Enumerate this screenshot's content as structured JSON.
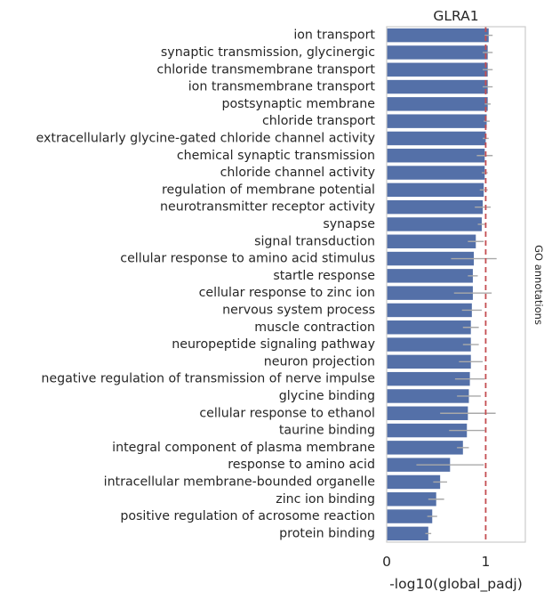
{
  "chart_data": {
    "type": "bar",
    "orientation": "horizontal",
    "title": "GLRA1",
    "xlabel": "-log10(global_padj)",
    "ylabel": "",
    "side_label": "GO annotations",
    "xlim": [
      0,
      1.4
    ],
    "xticks": [
      0,
      1
    ],
    "reference_line": 1,
    "bar_color": "#5470a8",
    "errorbar_color": "#a9a9a9",
    "refline_color": "#c44e52",
    "grid": false,
    "categories": [
      "ion transport",
      "synaptic transmission, glycinergic",
      "chloride transmembrane transport",
      "ion transmembrane transport",
      "postsynaptic membrane",
      "chloride transport",
      "extracellularly glycine-gated chloride channel activity",
      "chemical synaptic transmission",
      "chloride channel activity",
      "regulation of membrane potential",
      "neurotransmitter receptor activity",
      "synapse",
      "signal transduction",
      "cellular response to amino acid stimulus",
      "startle response",
      "cellular response to zinc ion",
      "nervous system process",
      "muscle contraction",
      "neuropeptide signaling pathway",
      "neuron projection",
      "negative regulation of transmission of nerve impulse",
      "glycine binding",
      "cellular response to ethanol",
      "taurine binding",
      "integral component of plasma membrane",
      "response to amino acid",
      "intracellular membrane-bounded organelle",
      "zinc ion binding",
      "positive regulation of acrosome reaction",
      "protein binding"
    ],
    "values": [
      1.03,
      1.02,
      1.02,
      1.02,
      1.02,
      1.01,
      1.0,
      0.99,
      0.99,
      0.98,
      0.97,
      0.96,
      0.9,
      0.88,
      0.87,
      0.87,
      0.86,
      0.85,
      0.85,
      0.85,
      0.84,
      0.83,
      0.82,
      0.81,
      0.77,
      0.64,
      0.54,
      0.5,
      0.46,
      0.42
    ],
    "errors": [
      0.04,
      0.05,
      0.05,
      0.05,
      0.03,
      0.03,
      0.03,
      0.08,
      0.03,
      0.04,
      0.08,
      0.04,
      0.08,
      0.23,
      0.05,
      0.19,
      0.1,
      0.08,
      0.08,
      0.12,
      0.15,
      0.12,
      0.28,
      0.18,
      0.06,
      0.34,
      0.07,
      0.08,
      0.05,
      0.03
    ]
  }
}
